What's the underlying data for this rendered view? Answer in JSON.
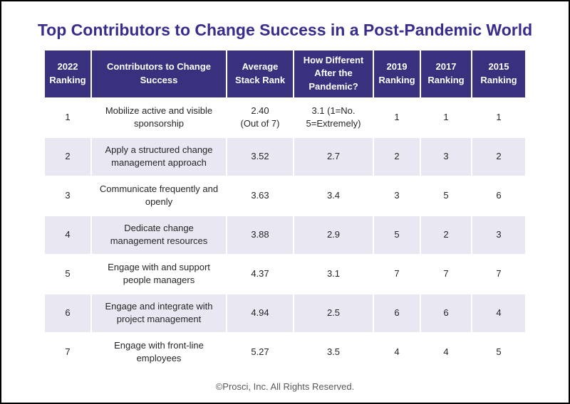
{
  "page": {
    "title": "Top Contributors to Change Success in a Post-Pandemic World",
    "footer": "©Prosci, Inc. All Rights Reserved."
  },
  "colors": {
    "title_text": "#362d8c",
    "header_bg": "#37317e",
    "header_text": "#ffffff",
    "row_alt_bg": "#e8e7f2",
    "body_text": "#262626",
    "footer_text": "#595959",
    "outer_border": "#000000"
  },
  "table": {
    "headers": [
      "2022\nRanking",
      "Contributors to Change\nSuccess",
      "Average\nStack Rank",
      "How Different\nAfter the\nPandemic?",
      "2019\nRanking",
      "2017\nRanking",
      "2015\nRanking"
    ],
    "rows": [
      {
        "cells": [
          "1",
          "Mobilize active and visible\nsponsorship",
          "2.40\n(Out of 7)",
          "3.1 (1=No.\n5=Extremely)",
          "1",
          "1",
          "1"
        ]
      },
      {
        "cells": [
          "2",
          "Apply a structured change\nmanagement approach",
          "3.52",
          "2.7",
          "2",
          "3",
          "2"
        ]
      },
      {
        "cells": [
          "3",
          "Communicate frequently and\nopenly",
          "3.63",
          "3.4",
          "3",
          "5",
          "6"
        ]
      },
      {
        "cells": [
          "4",
          "Dedicate change\nmanagement resources",
          "3.88",
          "2.9",
          "5",
          "2",
          "3"
        ]
      },
      {
        "cells": [
          "5",
          "Engage with and support\npeople managers",
          "4.37",
          "3.1",
          "7",
          "7",
          "7"
        ]
      },
      {
        "cells": [
          "6",
          "Engage and integrate with\nproject management",
          "4.94",
          "2.5",
          "6",
          "6",
          "4"
        ]
      },
      {
        "cells": [
          "7",
          "Engage with front-line\nemployees",
          "5.27",
          "3.5",
          "4",
          "4",
          "5"
        ]
      }
    ]
  },
  "chart_data": {
    "type": "table",
    "title": "Top Contributors to Change Success in a Post-Pandemic World",
    "columns": [
      "2022 Ranking",
      "Contributors to Change Success",
      "Average Stack Rank",
      "How Different After the Pandemic?",
      "2019 Ranking",
      "2017 Ranking",
      "2015 Ranking"
    ],
    "rows": [
      [
        1,
        "Mobilize active and visible sponsorship",
        2.4,
        3.1,
        1,
        1,
        1
      ],
      [
        2,
        "Apply a structured change management approach",
        3.52,
        2.7,
        2,
        3,
        2
      ],
      [
        3,
        "Communicate frequently and openly",
        3.63,
        3.4,
        3,
        5,
        6
      ],
      [
        4,
        "Dedicate change management resources",
        3.88,
        2.9,
        5,
        2,
        3
      ],
      [
        5,
        "Engage with and support people managers",
        4.37,
        3.1,
        7,
        7,
        7
      ],
      [
        6,
        "Engage and integrate with project management",
        4.94,
        2.5,
        6,
        6,
        4
      ],
      [
        7,
        "Engage with front-line employees",
        5.27,
        3.5,
        4,
        4,
        5
      ]
    ],
    "scales": {
      "average_stack_rank": "Out of 7",
      "how_different_after_pandemic": "1=No, 5=Extremely"
    },
    "footer": "©Prosci, Inc. All Rights Reserved."
  }
}
